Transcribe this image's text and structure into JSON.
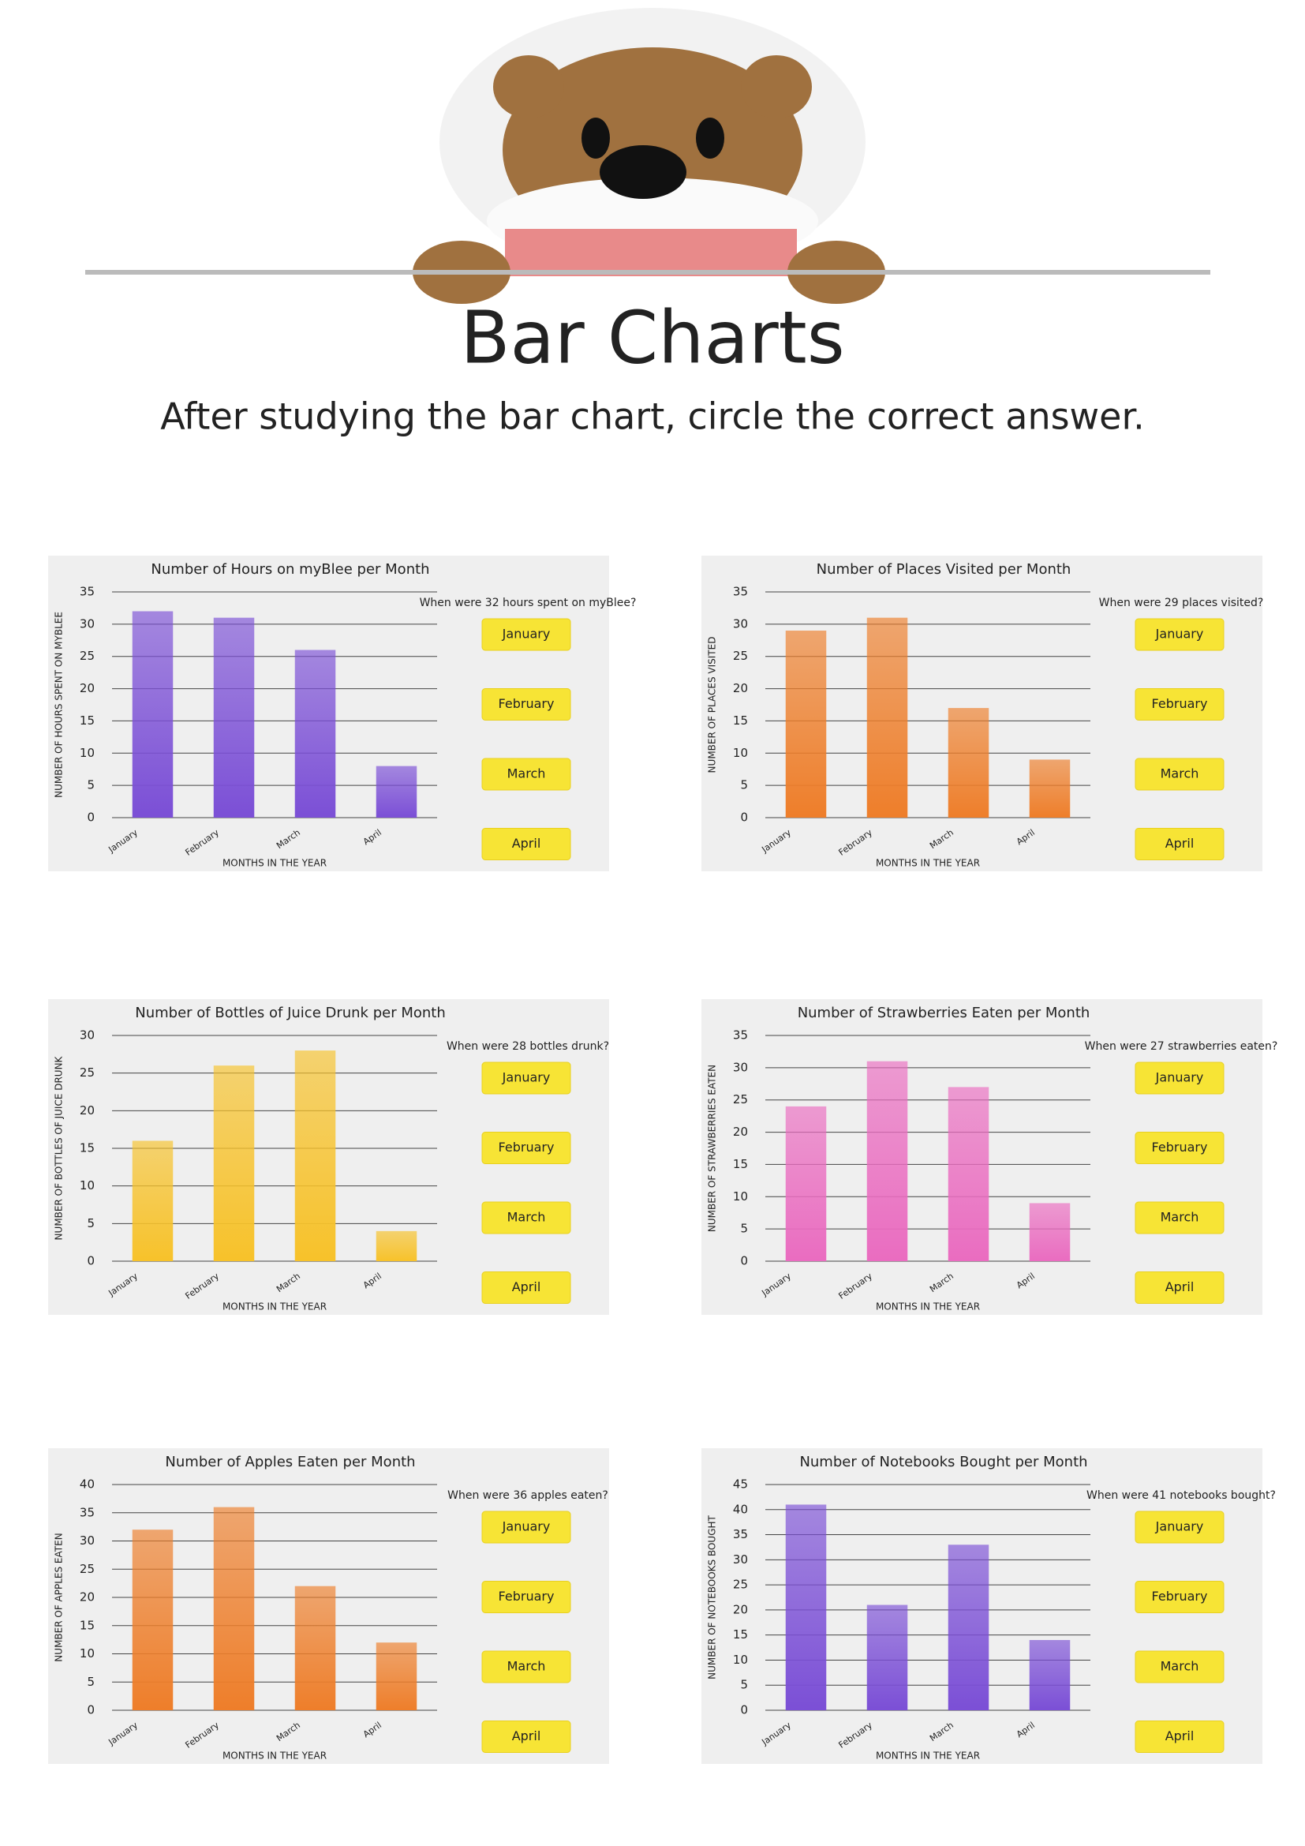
{
  "header": {
    "title": "Bar Charts",
    "subtitle": "After studying the bar chart, circle the correct answer."
  },
  "chart_data": [
    {
      "type": "bar",
      "title": "Number of Hours on myBlee per Month",
      "categories": [
        "January",
        "February",
        "March",
        "April"
      ],
      "values": [
        32,
        31,
        26,
        8
      ],
      "color": "#7b4fd6",
      "ylim": [
        0,
        35
      ],
      "yticks": [
        0,
        5,
        10,
        15,
        20,
        25,
        30,
        35
      ],
      "grid": true,
      "y_label": "NUMBER OF HOURS SPENT ON MYBLEE",
      "x_label": "MONTHS IN THE YEAR",
      "question": "When were 32 hours spent on myBlee?",
      "options": [
        "January",
        "February",
        "March",
        "April"
      ]
    },
    {
      "type": "bar",
      "title": "Number of Places Visited per Month",
      "categories": [
        "January",
        "February",
        "March",
        "April"
      ],
      "values": [
        29,
        31,
        17,
        9
      ],
      "color": "#ee7e2a",
      "ylim": [
        0,
        35
      ],
      "yticks": [
        0,
        5,
        10,
        15,
        20,
        25,
        30,
        35
      ],
      "grid": true,
      "y_label": "NUMBER OF PLACES VISITED",
      "x_label": "MONTHS IN THE YEAR",
      "question": "When were 29 places visited?",
      "options": [
        "January",
        "February",
        "March",
        "April"
      ]
    },
    {
      "type": "bar",
      "title": "Number of Bottles of Juice Drunk per Month",
      "categories": [
        "January",
        "February",
        "March",
        "April"
      ],
      "values": [
        16,
        26,
        28,
        4
      ],
      "color": "#f7c22a",
      "ylim": [
        0,
        30
      ],
      "yticks": [
        0,
        5,
        10,
        15,
        20,
        25,
        30
      ],
      "grid": true,
      "y_label": "NUMBER OF BOTTLES OF JUICE DRUNK",
      "x_label": "MONTHS IN THE YEAR",
      "question": "When were 28 bottles drunk?",
      "options": [
        "January",
        "February",
        "March",
        "April"
      ]
    },
    {
      "type": "bar",
      "title": "Number of Strawberries Eaten per Month",
      "categories": [
        "January",
        "February",
        "March",
        "April"
      ],
      "values": [
        24,
        31,
        27,
        9
      ],
      "color": "#ea6cc0",
      "ylim": [
        0,
        35
      ],
      "yticks": [
        0,
        5,
        10,
        15,
        20,
        25,
        30,
        35
      ],
      "grid": true,
      "y_label": "NUMBER OF STRAWBERRIES EATEN",
      "x_label": "MONTHS IN THE YEAR",
      "question": "When were 27 strawberries eaten?",
      "options": [
        "January",
        "February",
        "March",
        "April"
      ]
    },
    {
      "type": "bar",
      "title": "Number of Apples Eaten per Month",
      "categories": [
        "January",
        "February",
        "March",
        "April"
      ],
      "values": [
        32,
        36,
        22,
        12
      ],
      "color": "#ee7e2a",
      "ylim": [
        0,
        40
      ],
      "yticks": [
        0,
        5,
        10,
        15,
        20,
        25,
        30,
        35,
        40
      ],
      "grid": true,
      "y_label": "NUMBER OF APPLES EATEN",
      "x_label": "MONTHS IN THE YEAR",
      "question": "When were 36 apples eaten?",
      "options": [
        "January",
        "February",
        "March",
        "April"
      ]
    },
    {
      "type": "bar",
      "title": "Number of Notebooks Bought per Month",
      "categories": [
        "January",
        "February",
        "March",
        "April"
      ],
      "values": [
        41,
        21,
        33,
        14
      ],
      "color": "#7b4fd6",
      "ylim": [
        0,
        45
      ],
      "yticks": [
        0,
        5,
        10,
        15,
        20,
        25,
        30,
        35,
        40,
        45
      ],
      "grid": true,
      "y_label": "NUMBER OF NOTEBOOKS BOUGHT",
      "x_label": "MONTHS IN THE YEAR",
      "question": "When were 41 notebooks bought?",
      "options": [
        "January",
        "February",
        "March",
        "April"
      ]
    }
  ]
}
